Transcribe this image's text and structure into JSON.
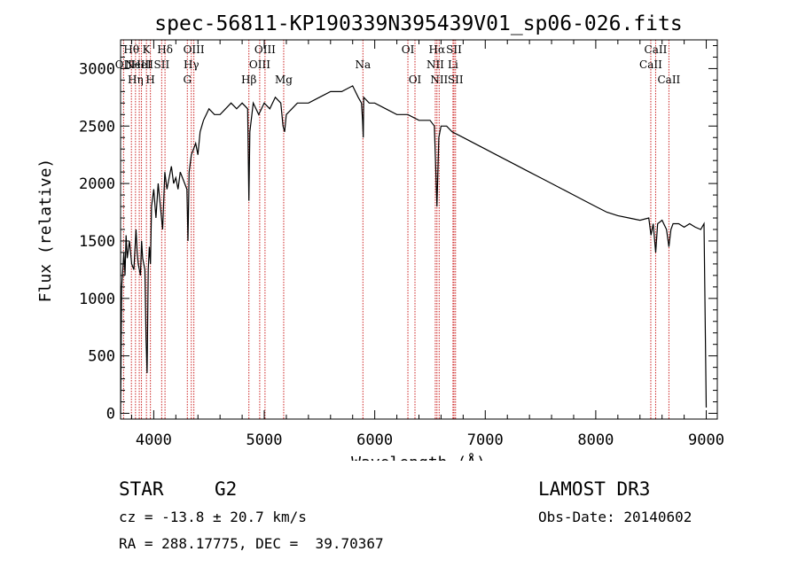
{
  "chart_data": {
    "type": "line",
    "title": "spec-56811-KP190339N395439V01_sp06-026.fits",
    "xlabel": "Wavelength (Å)",
    "ylabel": "Flux (relative)",
    "xlim": [
      3700,
      9100
    ],
    "ylim": [
      -50,
      3250
    ],
    "xticks": [
      4000,
      5000,
      6000,
      7000,
      8000,
      9000
    ],
    "yticks": [
      0,
      500,
      1000,
      1500,
      2000,
      2500,
      3000
    ],
    "series": [
      {
        "name": "spectrum",
        "x": [
          3700,
          3710,
          3720,
          3730,
          3740,
          3750,
          3760,
          3780,
          3800,
          3820,
          3840,
          3850,
          3860,
          3880,
          3890,
          3900,
          3920,
          3930,
          3940,
          3950,
          3960,
          3970,
          3980,
          4000,
          4020,
          4040,
          4060,
          4080,
          4100,
          4120,
          4140,
          4160,
          4180,
          4200,
          4220,
          4240,
          4260,
          4280,
          4300,
          4310,
          4320,
          4340,
          4360,
          4380,
          4400,
          4420,
          4450,
          4500,
          4550,
          4600,
          4650,
          4700,
          4750,
          4800,
          4850,
          4861,
          4870,
          4900,
          4950,
          5000,
          5050,
          5100,
          5150,
          5170,
          5184,
          5200,
          5250,
          5300,
          5400,
          5500,
          5600,
          5700,
          5800,
          5850,
          5880,
          5890,
          5896,
          5900,
          5950,
          6000,
          6100,
          6200,
          6300,
          6400,
          6500,
          6540,
          6563,
          6580,
          6600,
          6650,
          6700,
          6800,
          6900,
          7000,
          7100,
          7200,
          7300,
          7400,
          7500,
          7600,
          7700,
          7800,
          7900,
          8000,
          8100,
          8200,
          8300,
          8400,
          8480,
          8500,
          8520,
          8542,
          8560,
          8600,
          8640,
          8662,
          8680,
          8700,
          8750,
          8800,
          8850,
          8900,
          8950,
          8980,
          9000
        ],
        "y": [
          0,
          1100,
          1250,
          1400,
          1200,
          1550,
          1350,
          1500,
          1300,
          1250,
          1600,
          1400,
          1300,
          1200,
          1500,
          1350,
          1250,
          650,
          350,
          1250,
          1450,
          1300,
          1800,
          1950,
          1700,
          2000,
          1800,
          1600,
          2100,
          1950,
          2050,
          2150,
          2000,
          2050,
          1950,
          2100,
          2050,
          2000,
          1950,
          1500,
          2100,
          2250,
          2300,
          2350,
          2250,
          2450,
          2550,
          2650,
          2600,
          2600,
          2650,
          2700,
          2650,
          2700,
          2650,
          1850,
          2450,
          2700,
          2600,
          2700,
          2650,
          2750,
          2700,
          2500,
          2450,
          2600,
          2650,
          2700,
          2700,
          2750,
          2800,
          2800,
          2850,
          2750,
          2700,
          2550,
          2400,
          2750,
          2700,
          2700,
          2650,
          2600,
          2600,
          2550,
          2550,
          2500,
          1800,
          2400,
          2500,
          2500,
          2450,
          2400,
          2350,
          2300,
          2250,
          2200,
          2150,
          2100,
          2050,
          2000,
          1950,
          1900,
          1850,
          1800,
          1750,
          1720,
          1700,
          1680,
          1700,
          1550,
          1650,
          1400,
          1650,
          1680,
          1600,
          1450,
          1600,
          1650,
          1650,
          1620,
          1650,
          1620,
          1600,
          1650,
          50
        ],
        "color": "#000000"
      }
    ],
    "lines": [
      {
        "wavelength": 3727,
        "label": "OII",
        "row": 1
      },
      {
        "wavelength": 3798,
        "label": "Hθ",
        "row": 0
      },
      {
        "wavelength": 3835,
        "label": "Hη",
        "row": 2
      },
      {
        "wavelength": 3869,
        "label": "NeIII",
        "row": 1
      },
      {
        "wavelength": 3889,
        "label": "HeI",
        "row": 1
      },
      {
        "wavelength": 3934,
        "label": "K",
        "row": 0
      },
      {
        "wavelength": 3970,
        "label": "H",
        "row": 2
      },
      {
        "wavelength": 4072,
        "label": "SII",
        "row": 1
      },
      {
        "wavelength": 4102,
        "label": "Hδ",
        "row": 0
      },
      {
        "wavelength": 4304,
        "label": "G",
        "row": 2
      },
      {
        "wavelength": 4340,
        "label": "Hγ",
        "row": 1
      },
      {
        "wavelength": 4363,
        "label": "OIII",
        "row": 0
      },
      {
        "wavelength": 4861,
        "label": "Hβ",
        "row": 2
      },
      {
        "wavelength": 4959,
        "label": "OIII",
        "row": 1
      },
      {
        "wavelength": 5007,
        "label": "OIII",
        "row": 0
      },
      {
        "wavelength": 5176,
        "label": "Mg",
        "row": 2
      },
      {
        "wavelength": 5893,
        "label": "Na",
        "row": 1
      },
      {
        "wavelength": 6300,
        "label": "OI",
        "row": 0
      },
      {
        "wavelength": 6364,
        "label": "OI",
        "row": 2
      },
      {
        "wavelength": 6548,
        "label": "NII",
        "row": 1
      },
      {
        "wavelength": 6563,
        "label": "Hα",
        "row": 0
      },
      {
        "wavelength": 6583,
        "label": "NII",
        "row": 2
      },
      {
        "wavelength": 6708,
        "label": "Li",
        "row": 1
      },
      {
        "wavelength": 6717,
        "label": "SII",
        "row": 0
      },
      {
        "wavelength": 6731,
        "label": "SII",
        "row": 2
      },
      {
        "wavelength": 8498,
        "label": "CaII",
        "row": 1
      },
      {
        "wavelength": 8542,
        "label": "CaII",
        "row": 0
      },
      {
        "wavelength": 8662,
        "label": "CaII",
        "row": 2
      }
    ]
  },
  "info": {
    "object_class": "STAR",
    "subclass": "G2",
    "survey": "LAMOST DR3",
    "redshift": "cz = -13.8 ± 20.7 km/s",
    "obs_date": "Obs-Date: 20140602",
    "coords": "RA = 288.17775, DEC =  39.70367"
  },
  "colors": {
    "line_marker": "#cc2222",
    "spectrum": "#000000"
  }
}
